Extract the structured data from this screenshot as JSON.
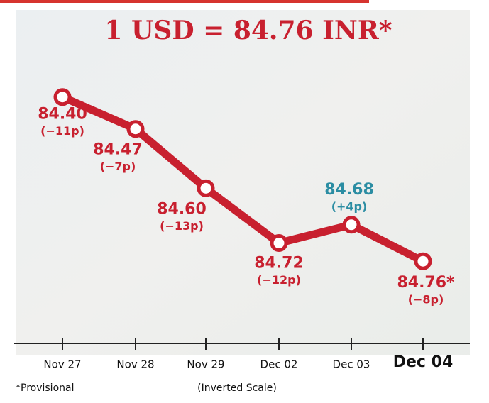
{
  "chart_data": {
    "type": "line",
    "title": "1 USD = 84.76 INR*",
    "categories": [
      "Nov 27",
      "Nov 28",
      "Nov 29",
      "Dec 02",
      "Dec 03",
      "Dec 04"
    ],
    "series": [
      {
        "color": "#c8202f",
        "values": [
          84.4,
          84.47,
          84.6,
          84.72,
          84.68,
          84.76
        ],
        "value_labels": [
          "84.40",
          "84.47",
          "84.60",
          "84.72",
          "84.68",
          "84.76*"
        ],
        "change_labels": [
          "(−11p)",
          "(−7p)",
          "(−13p)",
          "(−12p)",
          "(+4p)",
          "(−8p)"
        ],
        "label_colors": [
          "#c8202f",
          "#c8202f",
          "#c8202f",
          "#c8202f",
          "#2b8da3",
          "#c8202f"
        ]
      }
    ],
    "ylim": [
      84.94,
      84.36
    ],
    "inverted_scale": true,
    "notes": [
      "*Provisional",
      "(Inverted Scale)"
    ]
  }
}
